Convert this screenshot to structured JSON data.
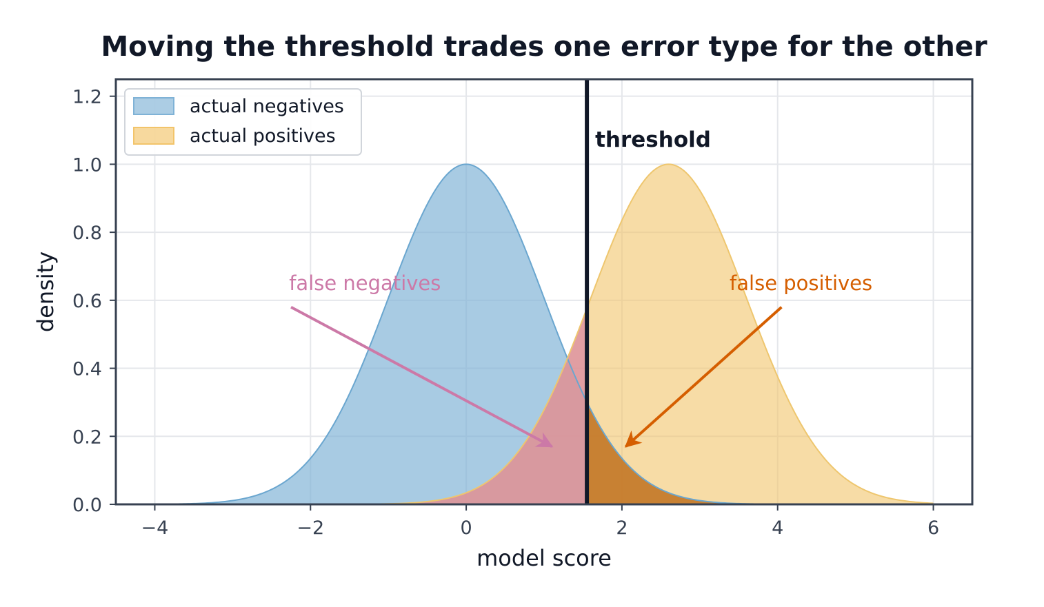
{
  "chart_data": {
    "type": "area",
    "title": "Moving the threshold trades one error type for the other",
    "xlabel": "model score",
    "ylabel": "density",
    "xlim": [
      -4.5,
      6.5
    ],
    "ylim": [
      0,
      1.25
    ],
    "xticks": [
      -4,
      -2,
      0,
      2,
      4,
      6
    ],
    "xtick_labels": [
      "−4",
      "−2",
      "0",
      "2",
      "4",
      "6"
    ],
    "yticks": [
      0.0,
      0.2,
      0.4,
      0.6,
      0.8,
      1.0,
      1.2
    ],
    "ytick_labels": [
      "0.0",
      "0.2",
      "0.4",
      "0.6",
      "0.8",
      "1.0",
      "1.2"
    ],
    "grid": true,
    "legend_position": "top-left",
    "series": [
      {
        "name": "actual negatives",
        "center": 0.0,
        "peak": 1.0,
        "sigma": 1.0,
        "color": "#7fb2d6"
      },
      {
        "name": "actual positives",
        "center": 2.6,
        "peak": 1.0,
        "sigma": 1.0,
        "color": "#f2c46a"
      }
    ],
    "threshold": {
      "x": 1.55,
      "label": "threshold",
      "color": "#111827"
    },
    "error_regions": {
      "false_negative_color": "#d98aa0",
      "false_positive_color": "#c46a10"
    },
    "annotations": [
      {
        "text": "false negatives",
        "text_x": -1.3,
        "text_y": 0.63,
        "arrow_from": [
          -2.25,
          0.58
        ],
        "arrow_to": [
          1.1,
          0.17
        ],
        "color": "#cc79a7"
      },
      {
        "text": "false positives",
        "text_x": 4.3,
        "text_y": 0.63,
        "arrow_from": [
          4.05,
          0.58
        ],
        "arrow_to": [
          2.05,
          0.17
        ],
        "color": "#d55e00"
      }
    ]
  }
}
